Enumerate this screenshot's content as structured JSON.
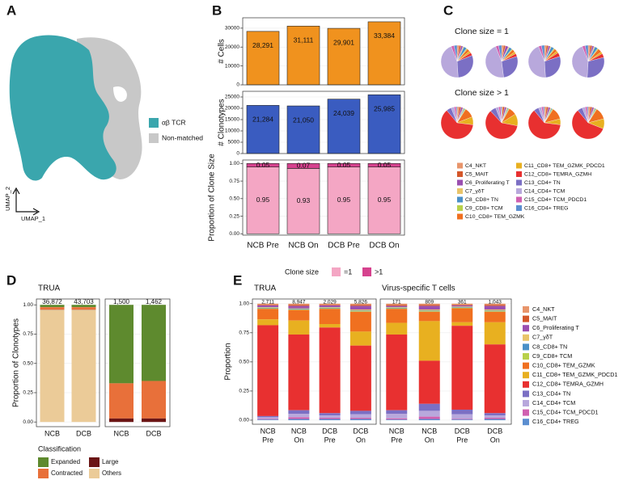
{
  "chart_data": [
    {
      "type": "umap",
      "panel": "A",
      "xlabel": "UMAP_1",
      "ylabel": "UMAP_2",
      "series": [
        {
          "name": "αβ TCR",
          "color": "#3aa6ad"
        },
        {
          "name": "Non-matched",
          "color": "#c8c8c8"
        }
      ]
    },
    {
      "type": "bar",
      "panel": "B",
      "ylabel": "# Cells",
      "values": [
        28291,
        31111,
        29901,
        33384
      ],
      "value_labels": [
        "28,291",
        "31,111",
        "29,901",
        "33,384"
      ],
      "color": "#f0921e",
      "ylim": [
        0,
        35500
      ],
      "yticks": [
        0,
        10000,
        20000,
        30000
      ]
    },
    {
      "type": "bar",
      "ylabel": "# Clonotypes",
      "values": [
        21284,
        21050,
        24039,
        25985
      ],
      "value_labels": [
        "21,284",
        "21,050",
        "24,039",
        "25,985"
      ],
      "color": "#3a5cc0",
      "ylim": [
        0,
        27500
      ],
      "yticks": [
        0,
        5000,
        10000,
        15000,
        20000,
        25000
      ]
    },
    {
      "type": "stacked_bar",
      "ylabel": "Proportion of Clone Size",
      "categories": [
        "NCB Pre",
        "NCB On",
        "DCB Pre",
        "DCB On"
      ],
      "legend_title": "Clone size",
      "series": [
        {
          "name": "=1",
          "color": "#f4a6c4",
          "values": [
            0.95,
            0.93,
            0.95,
            0.95
          ]
        },
        {
          "name": ">1",
          "color": "#d6428e",
          "values": [
            0.05,
            0.07,
            0.05,
            0.05
          ]
        }
      ],
      "ylim": [
        -0.02,
        1.05
      ],
      "yticks": [
        {
          "value": 0,
          "label": "0.00"
        },
        {
          "value": 0.25,
          "label": "0.25"
        },
        {
          "value": 0.5,
          "label": "0.50"
        },
        {
          "value": 0.75,
          "label": "0.75"
        },
        {
          "value": 1,
          "label": "1.00"
        }
      ]
    },
    {
      "type": "pie",
      "panel": "C",
      "categories": [
        "C4_NKT",
        "C5_MAIT",
        "C6_Proliferating T",
        "C7_γδT",
        "C8_CD8+ TN",
        "C9_CD8+ TCM",
        "C10_CD8+ TEM_GZMK",
        "C11_CD8+ TEM_GZMK_PDCD1",
        "C12_CD8+ TEMRA_GZMH",
        "C13_CD4+ TN",
        "C14_CD4+ TCM",
        "C15_CD4+ TCM_PDCD1",
        "C16_CD4+ TREG"
      ],
      "colors": [
        "#e8956b",
        "#d4572a",
        "#9b4fb0",
        "#e9c46a",
        "#4a90c8",
        "#b8d14a",
        "#f07020",
        "#e8b020",
        "#e83030",
        "#7b6fc4",
        "#b8a8dc",
        "#d060b0",
        "#5b8ed0"
      ],
      "groups": [
        {
          "title": "Clone size = 1",
          "pies": [
            [
              2,
              2,
              2,
              1,
              3,
              1,
              3,
              2,
              3,
              30,
              45,
              3,
              3
            ],
            [
              2,
              2,
              3,
              1,
              3,
              1,
              3,
              2,
              3,
              28,
              46,
              3,
              3
            ],
            [
              2,
              2,
              2,
              1,
              3,
              1,
              3,
              2,
              4,
              29,
              45,
              3,
              3
            ],
            [
              2,
              2,
              2,
              1,
              3,
              1,
              4,
              2,
              4,
              30,
              43,
              3,
              3
            ]
          ]
        },
        {
          "title": "Clone size > 1",
          "pies": [
            [
              2,
              2,
              2,
              1,
              1,
              1,
              10,
              8,
              62,
              5,
              3,
              2,
              1
            ],
            [
              1,
              2,
              2,
              1,
              1,
              1,
              8,
              12,
              60,
              6,
              3,
              2,
              1
            ],
            [
              2,
              2,
              2,
              1,
              1,
              1,
              12,
              6,
              62,
              5,
              3,
              2,
              1
            ],
            [
              2,
              2,
              2,
              1,
              1,
              1,
              12,
              10,
              58,
              5,
              3,
              2,
              1
            ]
          ]
        }
      ]
    },
    {
      "type": "stacked_bar",
      "panel": "D",
      "ylabel": "Proportion of Clonotypes",
      "legend_title": "Classification",
      "series": [
        {
          "name": "Expanded",
          "color": "#5e8a2e"
        },
        {
          "name": "Contracted",
          "color": "#e8703a"
        },
        {
          "name": "Large",
          "color": "#6b1515"
        },
        {
          "name": "Others",
          "color": "#ebcb98"
        }
      ],
      "ylim": [
        -0.04,
        1.05
      ],
      "yticks": [
        {
          "value": 0,
          "label": "0.00"
        },
        {
          "value": 0.25,
          "label": "0.25"
        },
        {
          "value": 0.5,
          "label": "0.50"
        },
        {
          "value": 0.75,
          "label": "0.75"
        },
        {
          "value": 1,
          "label": "1.00"
        }
      ],
      "facets": [
        {
          "title": "TRUA",
          "categories": [
            "NCB",
            "DCB"
          ],
          "totals": [
            36872,
            43703
          ],
          "totals_labels": [
            "36,872",
            "43,703"
          ],
          "values": [
            [
              0.02,
              0.02
            ],
            [
              0.02,
              0.02
            ],
            [
              0.002,
              0.002
            ],
            [
              0.958,
              0.958
            ]
          ]
        },
        {
          "categories": [
            "NCB",
            "DCB"
          ],
          "totals": [
            1500,
            1462
          ],
          "totals_labels": [
            "1,500",
            "1,462"
          ],
          "values": [
            [
              0.67,
              0.65
            ],
            [
              0.3,
              0.32
            ],
            [
              0.03,
              0.03
            ],
            [
              0,
              0
            ]
          ]
        }
      ]
    },
    {
      "type": "stacked_bar",
      "panel": "E",
      "ylabel": "Proportion",
      "series": [
        {
          "name": "C4_NKT",
          "color": "#e8956b"
        },
        {
          "name": "C5_MAIT",
          "color": "#d4572a"
        },
        {
          "name": "C6_Proliferating T",
          "color": "#9b4fb0"
        },
        {
          "name": "C7_γδT",
          "color": "#e9c46a"
        },
        {
          "name": "C8_CD8+ TN",
          "color": "#4a90c8"
        },
        {
          "name": "C9_CD8+ TCM",
          "color": "#b8d14a"
        },
        {
          "name": "C10_CD8+ TEM_GZMK",
          "color": "#f07020"
        },
        {
          "name": "C11_CD8+ TEM_GZMK_PDCD1",
          "color": "#e8b020"
        },
        {
          "name": "C12_CD8+ TEMRA_GZMH",
          "color": "#e83030"
        },
        {
          "name": "C13_CD4+ TN",
          "color": "#7b6fc4"
        },
        {
          "name": "C14_CD4+ TCM",
          "color": "#b8a8dc"
        },
        {
          "name": "C15_CD4+ TCM_PDCD1",
          "color": "#d060b0"
        },
        {
          "name": "C16_CD4+ TREG",
          "color": "#5b8ed0"
        }
      ],
      "ylim": [
        -0.035,
        1.04
      ],
      "yticks": [
        {
          "value": 0,
          "label": "0.00"
        },
        {
          "value": 0.25,
          "label": "0.25"
        },
        {
          "value": 0.5,
          "label": "0.50"
        },
        {
          "value": 0.75,
          "label": "0.75"
        },
        {
          "value": 1,
          "label": "1.00"
        }
      ],
      "facets": [
        {
          "title": "TRUA",
          "categories": [
            [
              "NCB",
              "Pre"
            ],
            [
              "NCB",
              "On"
            ],
            [
              "DCB",
              "Pre"
            ],
            [
              "DCB",
              "On"
            ]
          ],
          "totals": [
            2711,
            8947,
            2029,
            5826
          ],
          "totals_labels": [
            "2,711",
            "8,947",
            "2,029",
            "5,826"
          ],
          "values": [
            [
              0.01,
              0.01,
              0.01,
              0.01
            ],
            [
              0.005,
              0.01,
              0.005,
              0.01
            ],
            [
              0.015,
              0.02,
              0.015,
              0.03
            ],
            [
              0.005,
              0.005,
              0.005,
              0.01
            ],
            [
              0.005,
              0.005,
              0.005,
              0.005
            ],
            [
              0.005,
              0.005,
              0.005,
              0.005
            ],
            [
              0.09,
              0.09,
              0.13,
              0.17
            ],
            [
              0.05,
              0.12,
              0.03,
              0.12
            ],
            [
              0.78,
              0.65,
              0.735,
              0.56
            ],
            [
              0.01,
              0.03,
              0.02,
              0.03
            ],
            [
              0.015,
              0.03,
              0.02,
              0.03
            ],
            [
              0.005,
              0.015,
              0.01,
              0.01
            ],
            [
              0.005,
              0.01,
              0.01,
              0.01
            ]
          ]
        },
        {
          "title": "Virus-specific T cells",
          "categories": [
            [
              "NCB",
              "Pre"
            ],
            [
              "NCB",
              "On"
            ],
            [
              "DCB",
              "Pre"
            ],
            [
              "DCB",
              "On"
            ]
          ],
          "totals": [
            171,
            809,
            361,
            1043
          ],
          "totals_labels": [
            "171",
            "809",
            "361",
            "1,043"
          ],
          "values": [
            [
              0.01,
              0.01,
              0.01,
              0.01
            ],
            [
              0.01,
              0.01,
              0.005,
              0.01
            ],
            [
              0.01,
              0.03,
              0.01,
              0.03
            ],
            [
              0.005,
              0.01,
              0.005,
              0.01
            ],
            [
              0.005,
              0.005,
              0.005,
              0.005
            ],
            [
              0.005,
              0.005,
              0.005,
              0.005
            ],
            [
              0.12,
              0.08,
              0.12,
              0.09
            ],
            [
              0.1,
              0.34,
              0.03,
              0.19
            ],
            [
              0.65,
              0.37,
              0.72,
              0.59
            ],
            [
              0.03,
              0.06,
              0.04,
              0.02
            ],
            [
              0.04,
              0.05,
              0.04,
              0.02
            ],
            [
              0.01,
              0.02,
              0.005,
              0.01
            ],
            [
              0.005,
              0.01,
              0.005,
              0.01
            ]
          ]
        }
      ]
    }
  ]
}
